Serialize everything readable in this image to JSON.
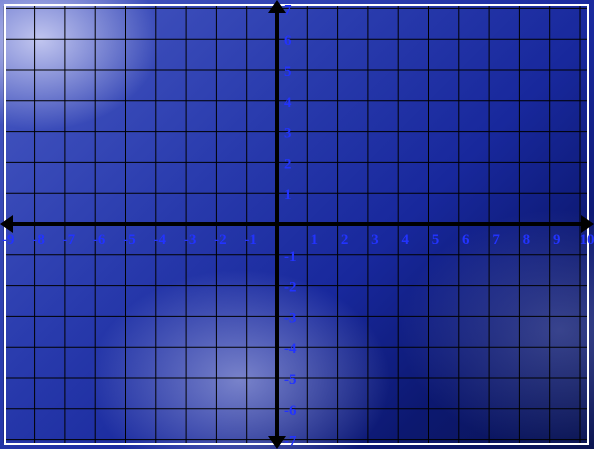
{
  "plane": {
    "x_range": [
      -9,
      10
    ],
    "y_range": [
      -7,
      7
    ],
    "x_ticks": [
      "-9",
      "-8",
      "-7",
      "-6",
      "-5",
      "-4",
      "-3",
      "-2",
      "-1",
      "1",
      "2",
      "3",
      "4",
      "5",
      "6",
      "7",
      "8",
      "9",
      "10"
    ],
    "y_ticks": [
      "7",
      "6",
      "5",
      "4",
      "3",
      "2",
      "1",
      "-1",
      "-2",
      "-3",
      "-4",
      "-5",
      "-6",
      "-7"
    ],
    "grid": true
  },
  "colors": {
    "grid_line": "#000000",
    "axis": "#000000",
    "tick_label": "#2233ff",
    "frame": "#ffffff"
  }
}
